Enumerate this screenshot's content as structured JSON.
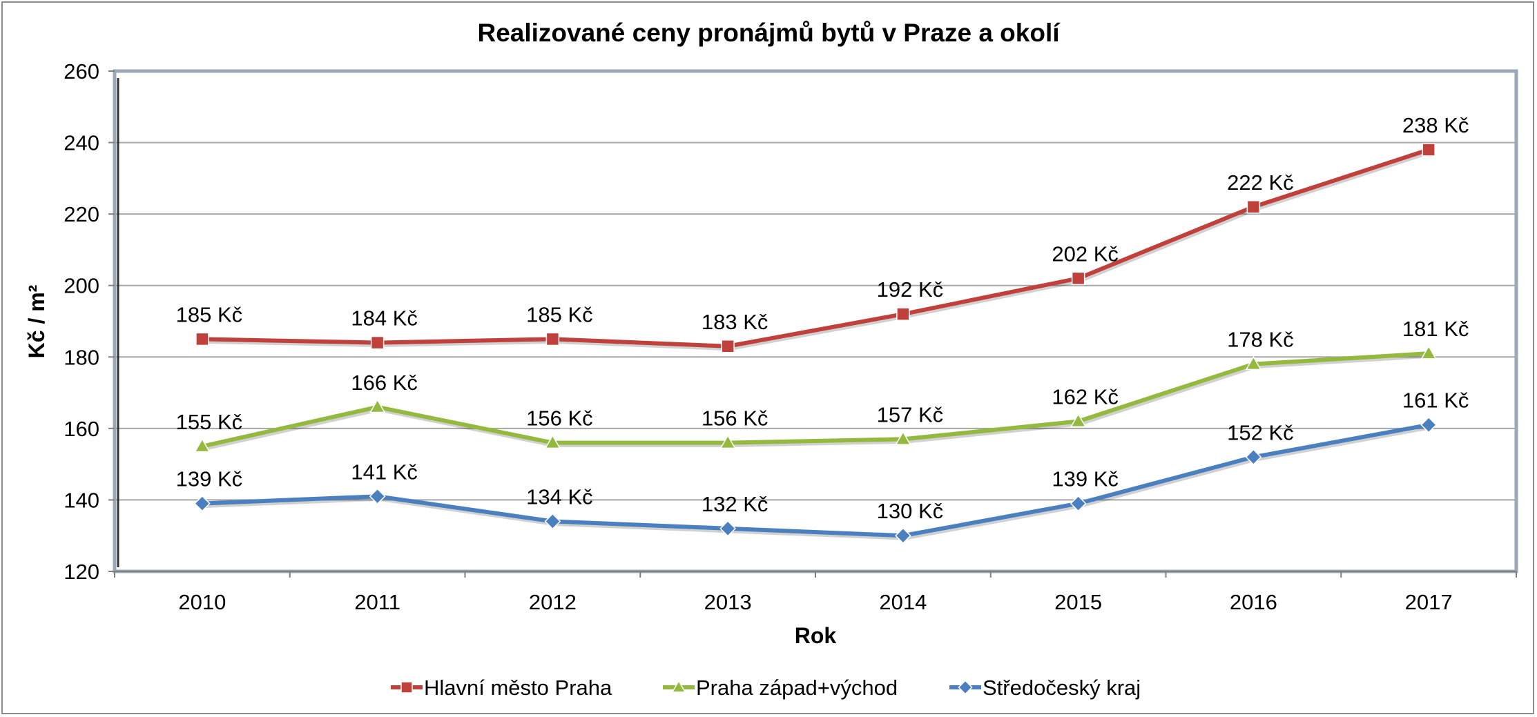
{
  "chart_data": {
    "type": "line",
    "title": "Realizované ceny pronájmů bytů v Praze a okolí",
    "xlabel": "Rok",
    "ylabel": "Kč / m²",
    "categories": [
      "2010",
      "2011",
      "2012",
      "2013",
      "2014",
      "2015",
      "2016",
      "2017"
    ],
    "ylim": [
      120,
      260
    ],
    "yticks": [
      120,
      140,
      160,
      180,
      200,
      220,
      240,
      260
    ],
    "grid": true,
    "legend_position": "bottom",
    "value_suffix": " Kč",
    "series": [
      {
        "name": "Hlavní město Praha",
        "color": "#c0403c",
        "marker": "square",
        "values": [
          185,
          184,
          185,
          183,
          192,
          202,
          222,
          238
        ]
      },
      {
        "name": "Praha západ+východ",
        "color": "#93b93f",
        "marker": "triangle",
        "values": [
          155,
          166,
          156,
          156,
          157,
          162,
          178,
          181
        ]
      },
      {
        "name": "Středočeský kraj",
        "color": "#4a7fc0",
        "marker": "diamond",
        "values": [
          139,
          141,
          134,
          132,
          130,
          139,
          152,
          161
        ]
      }
    ]
  }
}
